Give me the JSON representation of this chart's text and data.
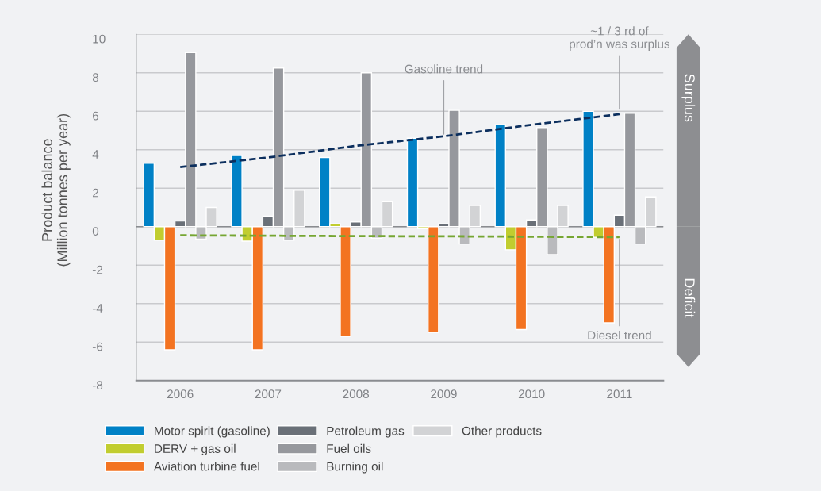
{
  "chart_data": {
    "type": "bar",
    "ylabel": "Product balance\n(Million tonnes per year)",
    "categories": [
      "2006",
      "2007",
      "2008",
      "2009",
      "2010",
      "2011"
    ],
    "series": [
      {
        "name": "Motor spirit (gasoline)",
        "color": "#0081c6",
        "values": [
          3.3,
          3.7,
          3.6,
          4.6,
          5.3,
          6.0
        ]
      },
      {
        "name": "DERV + gas oil",
        "color": "#c1cd2f",
        "values": [
          -0.7,
          -0.75,
          0.15,
          -0.1,
          -1.2,
          -0.55
        ]
      },
      {
        "name": "Aviation turbine fuel",
        "color": "#f37321",
        "values": [
          -6.4,
          -6.4,
          -5.7,
          -5.5,
          -5.35,
          -5.0
        ]
      },
      {
        "name": "Petroleum gas",
        "color": "#6a7078",
        "values": [
          0.3,
          0.55,
          0.25,
          0.15,
          0.35,
          0.6
        ]
      },
      {
        "name": "Fuel oils",
        "color": "#96989d",
        "values": [
          9.05,
          8.25,
          8.0,
          6.05,
          5.15,
          5.9
        ]
      },
      {
        "name": "Burning oil",
        "color": "#b9babd",
        "values": [
          -0.65,
          -0.7,
          -0.6,
          -0.9,
          -1.45,
          -0.9
        ]
      },
      {
        "name": "Other products",
        "color": "#d2d3d5",
        "values": [
          1.0,
          1.9,
          1.3,
          1.1,
          1.1,
          1.55
        ]
      },
      {
        "type": "line",
        "color": "#0c2f5e",
        "line_style": "dashed",
        "values": [
          3.1,
          3.6,
          4.2,
          4.7,
          5.3,
          5.85
        ]
      },
      {
        "type": "line",
        "color": "#76a632",
        "line_style": "dashed",
        "values": [
          -0.45,
          -0.47,
          -0.49,
          -0.5,
          -0.52,
          -0.54
        ]
      }
    ],
    "ylim": [
      -8,
      10
    ],
    "yticks": [
      -8,
      -6,
      -4,
      -2,
      0,
      2,
      4,
      6,
      8,
      10
    ],
    "grid": "y",
    "legend": "bottom",
    "ref_lines": [
      {
        "axis": "y",
        "value": 0,
        "color": "#8a8c90"
      }
    ],
    "annotations": [
      {
        "text": "Gasoline trend",
        "x": "2009",
        "y": 4.7
      },
      {
        "text": "~1 / 3 rd of\nprod’n was surplus",
        "x": "2011",
        "y": 6.0
      },
      {
        "text": "Diesel trend",
        "x": "2011",
        "y": -0.54
      },
      "Surplus",
      "Deficit"
    ]
  }
}
